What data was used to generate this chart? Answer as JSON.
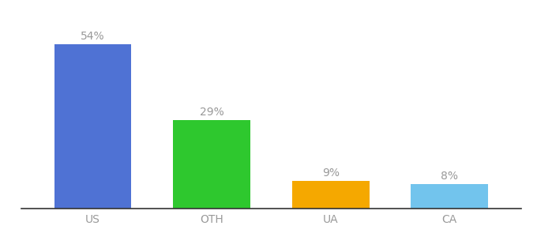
{
  "categories": [
    "US",
    "OTH",
    "UA",
    "CA"
  ],
  "values": [
    54,
    29,
    9,
    8
  ],
  "bar_colors": [
    "#4f72d4",
    "#2ec82e",
    "#f5a800",
    "#72c4ed"
  ],
  "labels": [
    "54%",
    "29%",
    "9%",
    "8%"
  ],
  "ylim": [
    0,
    63
  ],
  "background_color": "#ffffff",
  "label_fontsize": 10,
  "tick_fontsize": 10,
  "label_color": "#999999",
  "tick_color": "#999999",
  "bar_width": 0.65,
  "xlim": [
    -0.6,
    3.6
  ]
}
